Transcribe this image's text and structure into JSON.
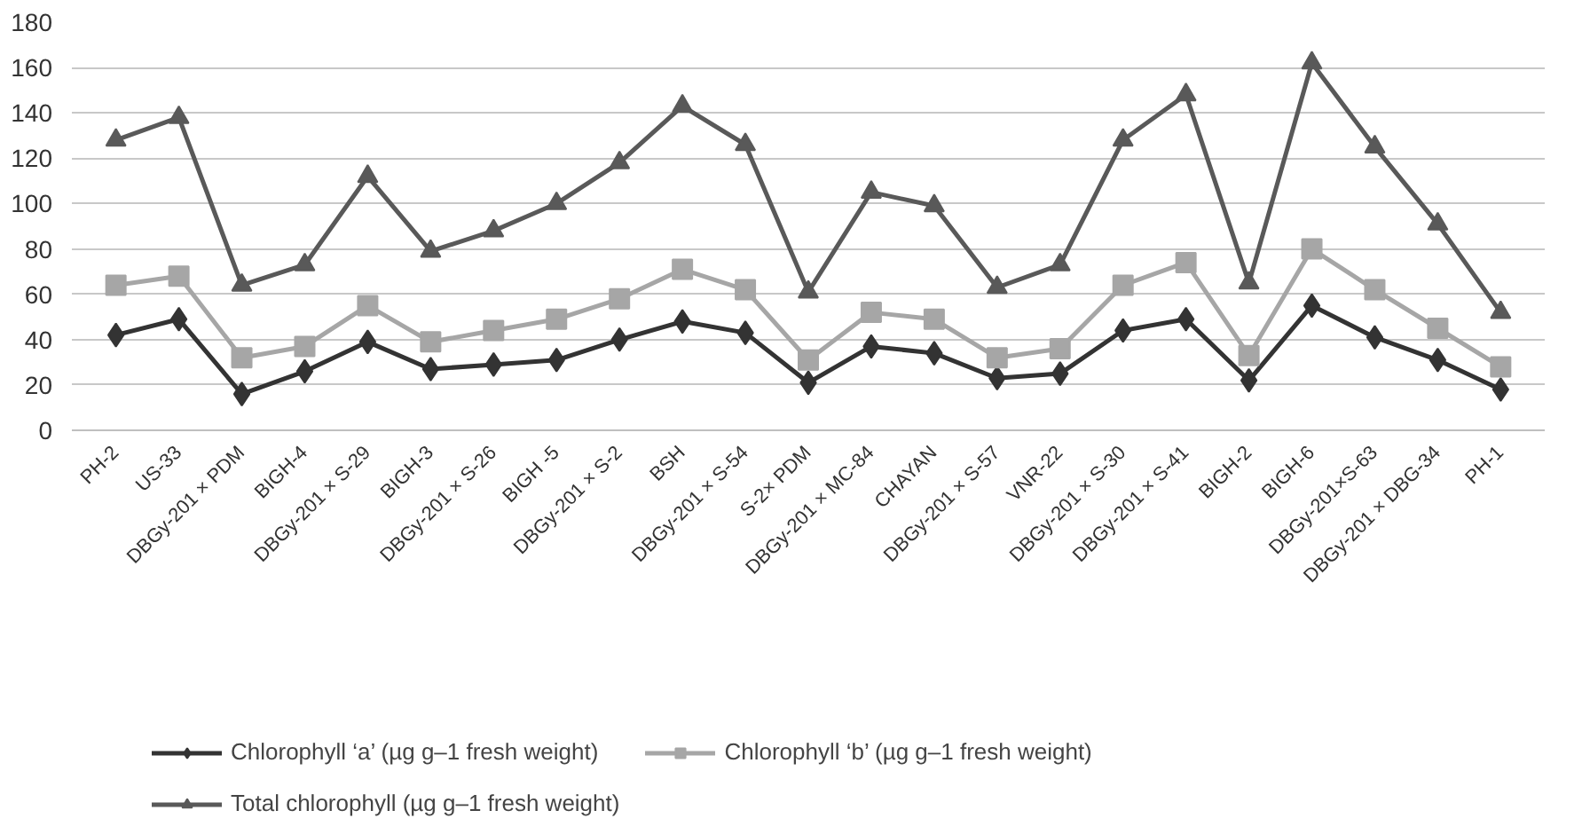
{
  "chart_data": {
    "type": "line",
    "categories": [
      "PH-2",
      "US-33",
      "DBGy-201 × PDM",
      "BIGH-4",
      "DBGy-201 × S-29",
      "BIGH-3",
      "DBGy-201 × S-26",
      "BIGH -5",
      "DBGy-201 × S-2",
      "BSH",
      "DBGy-201 × S-54",
      "S-2× PDM",
      "DBGy-201 × MC-84",
      "CHAYAN",
      "DBGy-201 × S-57",
      "VNR-22",
      "DBGy-201 × S-30",
      "DBGy-201 × S-41",
      "BIGH-2",
      "BIGH-6",
      "DBGy-201×S-63",
      "DBGy-201 × DBG-34",
      "PH-1"
    ],
    "series": [
      {
        "name": "Chlorophyll ‘a’ (µg g–1 fresh weight)",
        "color": "#333333",
        "marker": "diamond",
        "values": [
          42,
          49,
          16,
          26,
          39,
          27,
          29,
          31,
          40,
          48,
          43,
          21,
          37,
          34,
          23,
          25,
          44,
          49,
          22,
          55,
          41,
          31,
          18
        ]
      },
      {
        "name": "Chlorophyll ‘b’ (µg g–1 fresh weight)",
        "color": "#a6a6a6",
        "marker": "square",
        "values": [
          64,
          68,
          32,
          37,
          55,
          39,
          44,
          49,
          58,
          71,
          62,
          31,
          52,
          49,
          32,
          36,
          64,
          74,
          33,
          80,
          62,
          45,
          28
        ]
      },
      {
        "name": "Total chlorophyll (µg g–1 fresh weight)",
        "color": "#595959",
        "marker": "triangle",
        "values": [
          128,
          138,
          64,
          73,
          112,
          79,
          88,
          100,
          118,
          143,
          126,
          61,
          105,
          99,
          63,
          73,
          128,
          148,
          65,
          162,
          125,
          91,
          52
        ]
      }
    ],
    "ylim": [
      0,
      180
    ],
    "yticks": [
      0,
      20,
      40,
      60,
      80,
      100,
      120,
      140,
      160,
      180
    ],
    "grid": "y",
    "legend": "bottom",
    "line_style": "solid"
  }
}
